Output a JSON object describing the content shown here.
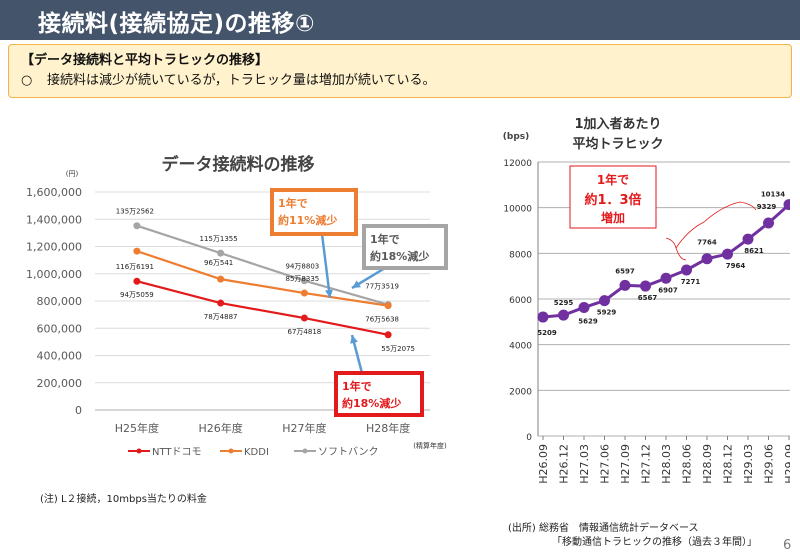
{
  "header": {
    "title": "接続料(接続協定)の推移①"
  },
  "summary": {
    "heading": "【データ接続料と平均トラヒックの推移】",
    "bullet": "○",
    "text": "接続料は減少が続いているが，トラヒック量は増加が続いている。"
  },
  "chart_data": [
    {
      "type": "line",
      "title": "データ接続料の推移",
      "ylabel": "(円)",
      "xlabel_note": "(精算年度)",
      "categories": [
        "H25年度",
        "H26年度",
        "H27年度",
        "H28年度"
      ],
      "ylim": [
        0,
        1600000
      ],
      "yticks": [
        0,
        200000,
        400000,
        600000,
        800000,
        1000000,
        1200000,
        1400000,
        1600000
      ],
      "ytick_labels": [
        "0",
        "200,000",
        "400,000",
        "600,000",
        "800,000",
        "1,000,000",
        "1,200,000",
        "1,400,000",
        "1,600,000"
      ],
      "grid": true,
      "legend": "bottom",
      "series": [
        {
          "name": "NTTドコモ",
          "color": "#e31a1c",
          "values": [
            945059,
            784887,
            674818,
            552075
          ],
          "labels": [
            "94万5059",
            "78万4887",
            "67万4818",
            "55万2075"
          ]
        },
        {
          "name": "KDDI",
          "color": "#ed7d31",
          "values": [
            1166191,
            960541,
            858335,
            765638
          ],
          "labels": [
            "116万6191",
            "96万541",
            "85万8335",
            "76万5638"
          ]
        },
        {
          "name": "ソフトバンク",
          "color": "#a5a5a5",
          "values": [
            1352562,
            1151355,
            948803,
            773519
          ],
          "labels": [
            "135万2562",
            "115万1355",
            "94万8803",
            "77万3519"
          ]
        }
      ],
      "annotations": [
        {
          "line1": "1年で",
          "line2": "約11%減少",
          "color": "#ed7d31",
          "target": "KDDI"
        },
        {
          "line1": "1年で",
          "line2": "約18%減少",
          "color": "#a5a5a5",
          "target": "ソフトバンク"
        },
        {
          "line1": "1年で",
          "line2": "約18%減少",
          "color": "#e31a1c",
          "target": "NTTドコモ"
        }
      ]
    },
    {
      "type": "line",
      "title_line1": "1加入者あたり",
      "title_line2": "平均トラヒック",
      "ylabel": "(bps)",
      "categories": [
        "H26.09",
        "H26.12",
        "H27.03",
        "H27.06",
        "H27.09",
        "H27.12",
        "H28.03",
        "H28.06",
        "H28.09",
        "H28.12",
        "H29.03",
        "H29.06",
        "H29.09"
      ],
      "ylim": [
        0,
        12000
      ],
      "yticks": [
        0,
        2000,
        4000,
        6000,
        8000,
        10000,
        12000
      ],
      "grid": true,
      "series": [
        {
          "name": "平均トラヒック",
          "color": "#7030a0",
          "values": [
            5209,
            5295,
            5629,
            5929,
            6597,
            6567,
            6907,
            7271,
            7764,
            7964,
            8621,
            9329,
            10134
          ]
        }
      ],
      "annotation": {
        "line1": "1年で",
        "line2": "約1．3倍",
        "line3": "増加",
        "color": "#e31a1c"
      }
    }
  ],
  "footnote": "(注) L２接続，10mbps当たりの料金",
  "source": {
    "line1": "(出所) 総務省　情報通信統計データベース",
    "line2": "「移動通信トラヒックの推移（過去３年間）」"
  },
  "page_number": "6"
}
